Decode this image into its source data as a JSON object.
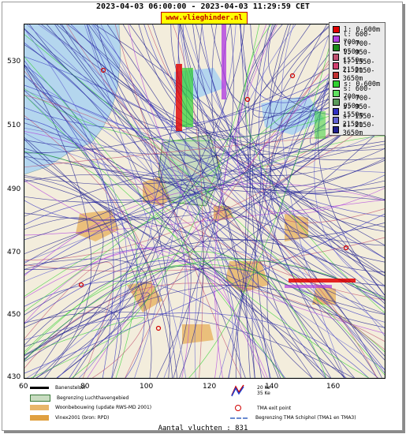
{
  "title": "2023-04-03 06:00:00 - 2023-04-03 11:29:59 CET",
  "brand": "www.vlieghinder.nl",
  "y_ticks": [
    "530",
    "510",
    "490",
    "470",
    "450",
    "430"
  ],
  "x_ticks": [
    "60",
    "80",
    "100",
    "120",
    "140",
    "160"
  ],
  "legend": [
    {
      "label": "l: 0-600m",
      "color": "#e00000"
    },
    {
      "label": "l: 600-700m",
      "color": "#b040e0"
    },
    {
      "label": "l: 700-950m",
      "color": "#1a8a1a"
    },
    {
      "label": "l: 950-1550m",
      "color": "#c05070"
    },
    {
      "label": "l: 1550-2150m",
      "color": "#d04070"
    },
    {
      "label": "l: 2150-3650m",
      "color": "#c03030"
    },
    {
      "label": "s: 0-600m",
      "color": "#30d030"
    },
    {
      "label": "s: 600-700m",
      "color": "#60e060"
    },
    {
      "label": "s: 700-950m",
      "color": "#5a9a5a"
    },
    {
      "label": "s: 950-1550m",
      "color": "#3030c0"
    },
    {
      "label": "s: 1550-2150m",
      "color": "#6060d0"
    },
    {
      "label": "s: 2150-3650m",
      "color": "#202090"
    }
  ],
  "map_legend": {
    "runway": "Banenstelsel",
    "airport_boundary": "Begrenzing Luchthavengebied",
    "housing": "Woonbebouwing (update RWS-MD 2001)",
    "vinex": "Vinex2001 (bron: RPD)",
    "noise_label_a": "20 Ke",
    "noise_label_b": "35 Ke",
    "tma_exit": "TMA exit point",
    "tma_boundary": "Begrenzing TMA Schiphol  (TMA1 en TMA3)"
  },
  "footer": "Aantal vluchten : 831",
  "colors": {
    "water": "#b4d6ee",
    "land": "#f3eddc",
    "housing": "#e8b66a",
    "vinex": "#e0a040",
    "airport": "#c8dcc0"
  }
}
